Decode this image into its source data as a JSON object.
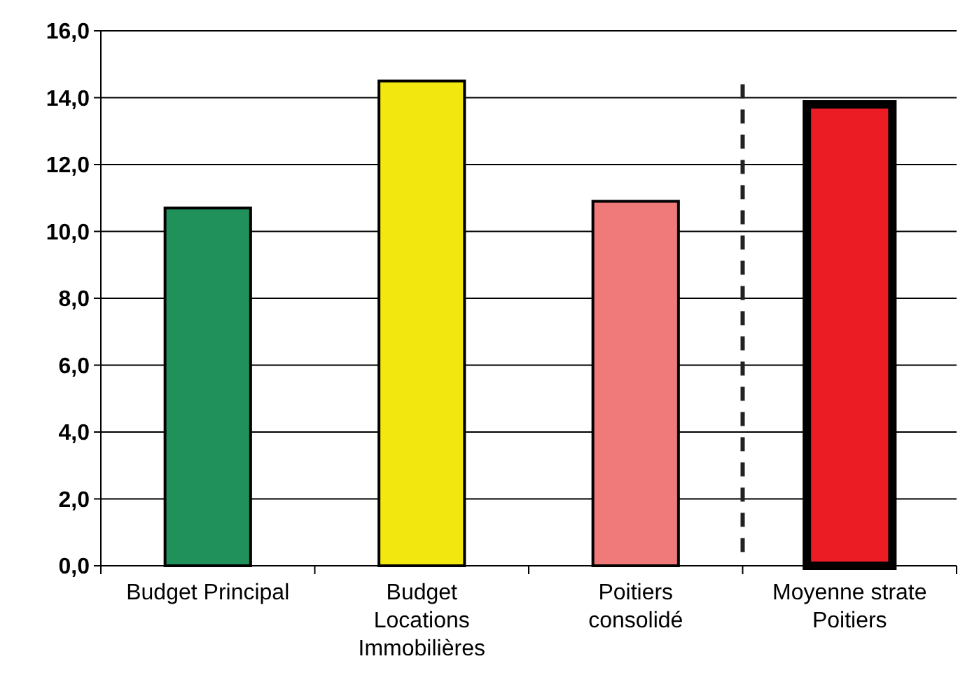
{
  "chart_data": {
    "type": "bar",
    "categories": [
      "Budget Principal",
      "Budget\nLocations\nImmobilières",
      "Poitiers\nconsolidé",
      "Moyenne strate\nPoitiers"
    ],
    "values": [
      10.7,
      14.5,
      10.9,
      13.8
    ],
    "colors": [
      "#21915b",
      "#f2e80f",
      "#f07a7a",
      "#ec1c24"
    ],
    "ylim": [
      0,
      16
    ],
    "yticks": [
      {
        "value": 0,
        "label": "0,0"
      },
      {
        "value": 2,
        "label": "2,0"
      },
      {
        "value": 4,
        "label": "4,0"
      },
      {
        "value": 6,
        "label": "6,0"
      },
      {
        "value": 8,
        "label": "8,0"
      },
      {
        "value": 10,
        "label": "10,0"
      },
      {
        "value": 12,
        "label": "12,0"
      },
      {
        "value": 14,
        "label": "14,0"
      },
      {
        "value": 16,
        "label": "16,0"
      }
    ],
    "grid": "y"
  }
}
